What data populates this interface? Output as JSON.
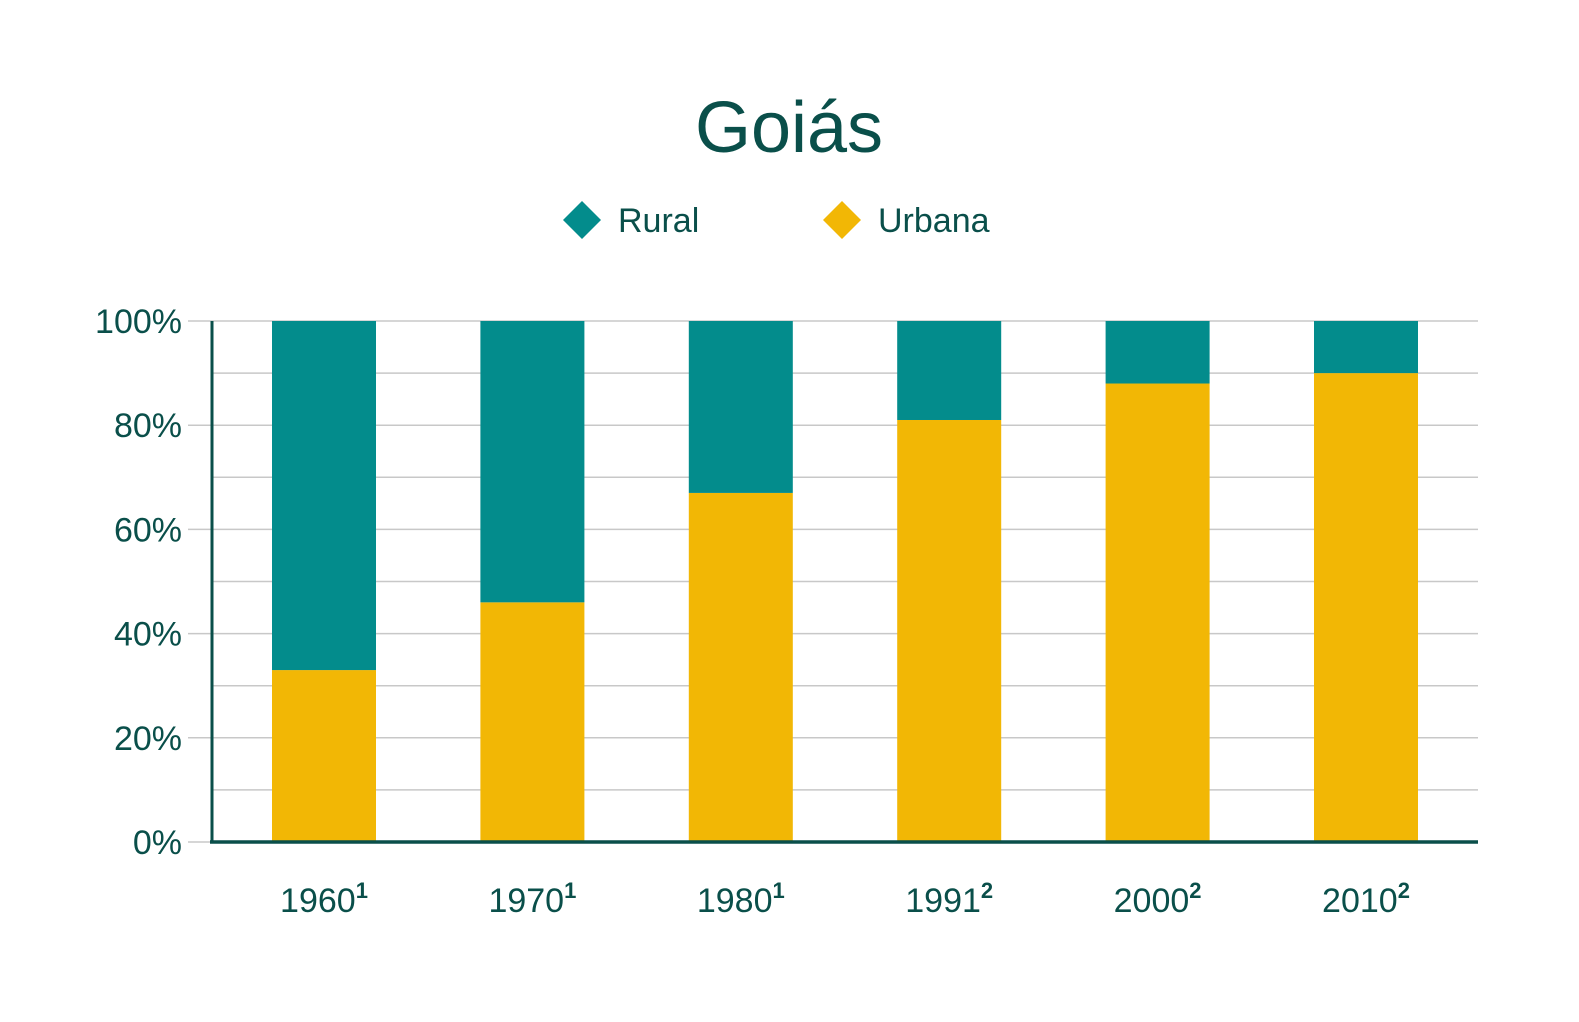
{
  "chart_data": {
    "type": "bar",
    "stacked": true,
    "title": "Goiás",
    "categories": [
      {
        "label": "1960",
        "sup": "1"
      },
      {
        "label": "1970",
        "sup": "1"
      },
      {
        "label": "1980",
        "sup": "1"
      },
      {
        "label": "1991",
        "sup": "2"
      },
      {
        "label": "2000",
        "sup": "2"
      },
      {
        "label": "2010",
        "sup": "2"
      }
    ],
    "series": [
      {
        "name": "Urbana",
        "color": "#F2B705",
        "values": [
          33,
          46,
          67,
          81,
          88,
          90
        ]
      },
      {
        "name": "Rural",
        "color": "#038C8C",
        "values": [
          67,
          54,
          33,
          19,
          12,
          10
        ]
      }
    ],
    "legend": [
      {
        "name": "Rural",
        "color": "#038C8C"
      },
      {
        "name": "Urbana",
        "color": "#F2B705"
      }
    ],
    "legend_position": "top-center",
    "y_ticks": [
      "0%",
      "20%",
      "40%",
      "60%",
      "80%",
      "100%"
    ],
    "ylim": [
      0,
      100
    ],
    "grid": true,
    "text_color": "#0A4F4A",
    "axis_color": "#0A4F4A",
    "grid_color": "#C8C8C8"
  }
}
